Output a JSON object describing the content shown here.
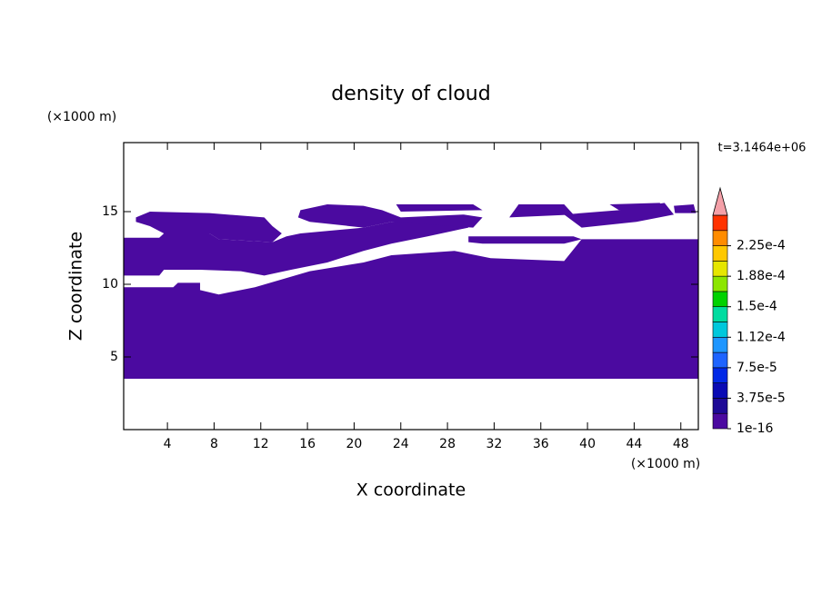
{
  "chart_data": {
    "type": "contour",
    "title": "density of cloud",
    "xlabel": "X coordinate",
    "ylabel": "Z coordinate",
    "x_unit": "(×1000 m)",
    "y_unit": "(×1000 m)",
    "time_label": "t=3.1464e+06",
    "xlim": [
      0.25,
      49.5
    ],
    "ylim": [
      0,
      19.75
    ],
    "xticks": [
      4,
      8,
      12,
      16,
      20,
      24,
      28,
      32,
      36,
      40,
      44,
      48
    ],
    "yticks": [
      5,
      10,
      15
    ],
    "regions": [
      {
        "color": "#4b0aa0",
        "x": [
          0.25,
          4.5,
          4.9,
          6.8,
          6.8,
          8.4,
          11.5,
          16.2,
          20.8,
          23.2,
          28.6,
          31.7,
          38.0,
          39.5,
          49.5,
          49.5,
          0.25
        ],
        "y": [
          9.8,
          9.8,
          10.1,
          10.1,
          9.6,
          9.3,
          9.8,
          10.9,
          11.5,
          12.0,
          12.3,
          11.8,
          11.6,
          13.1,
          13.1,
          3.5,
          3.5
        ]
      },
      {
        "color": "#4b0aa0",
        "x": [
          0.25,
          3.3,
          3.7,
          7.6,
          8.4,
          13.0,
          14.2,
          15.4,
          20.8,
          23.2,
          29.4,
          29.8,
          26.3,
          23.2,
          20.8,
          17.7,
          14.6,
          12.3,
          10.3,
          6.8,
          3.7,
          3.3,
          0.25
        ],
        "y": [
          13.2,
          13.2,
          13.5,
          13.5,
          13.1,
          12.9,
          13.3,
          13.5,
          13.9,
          14.3,
          14.3,
          13.9,
          13.3,
          12.8,
          12.3,
          11.5,
          11.0,
          10.6,
          10.9,
          11.0,
          11.0,
          10.6,
          10.6
        ]
      },
      {
        "color": "#4b0aa0",
        "x": [
          29.8,
          38.8,
          39.5,
          38.0,
          31.0,
          29.8
        ],
        "y": [
          13.3,
          13.3,
          13.1,
          12.8,
          12.8,
          12.9
        ]
      },
      {
        "color": "#4b0aa0",
        "x": [
          1.3,
          2.5,
          7.6,
          12.3,
          13.0,
          13.8,
          13.0,
          8.4,
          7.6,
          3.7,
          2.5,
          1.3
        ],
        "y": [
          14.6,
          15.0,
          14.9,
          14.6,
          14.0,
          13.5,
          12.9,
          13.1,
          13.5,
          13.5,
          14.0,
          14.3
        ]
      },
      {
        "color": "#4b0aa0",
        "x": [
          15.4,
          17.7,
          20.8,
          22.4,
          24.0,
          29.4,
          31.0,
          30.2,
          23.2,
          20.8,
          16.2,
          15.2
        ],
        "y": [
          15.1,
          15.5,
          15.4,
          15.1,
          14.6,
          14.8,
          14.6,
          13.9,
          14.3,
          13.9,
          14.3,
          14.6
        ]
      },
      {
        "color": "#4b0aa0",
        "x": [
          23.6,
          30.2,
          31.0,
          24.0
        ],
        "y": [
          15.5,
          15.5,
          15.1,
          15.0
        ]
      },
      {
        "color": "#4b0aa0",
        "x": [
          34.1,
          38.0,
          38.8,
          33.3
        ],
        "y": [
          15.5,
          15.5,
          14.8,
          14.6
        ]
      },
      {
        "color": "#4b0aa0",
        "x": [
          38.0,
          42.7,
          46.6,
          47.4,
          44.2,
          39.5
        ],
        "y": [
          14.8,
          15.1,
          15.6,
          14.8,
          14.3,
          13.9
        ]
      },
      {
        "color": "#4b0aa0",
        "x": [
          41.9,
          46.2,
          46.6,
          42.7
        ],
        "y": [
          15.5,
          15.6,
          15.1,
          15.1
        ]
      },
      {
        "color": "#4b0aa0",
        "x": [
          47.4,
          49.1,
          49.3,
          47.5
        ],
        "y": [
          15.4,
          15.5,
          14.9,
          14.9
        ]
      }
    ],
    "colorbar": {
      "clim": [
        1e-16,
        0.0002625
      ],
      "colors": [
        "#4b0aa0",
        "#1e0a96",
        "#0a0ab4",
        "#0028e6",
        "#1e64ff",
        "#1e96ff",
        "#00c8dc",
        "#00dca0",
        "#00d200",
        "#8ce600",
        "#e6e600",
        "#ffc800",
        "#ff8c00",
        "#ff3200"
      ],
      "extend_color": "#f4a0a8",
      "ticks": [
        {
          "value": 1e-16,
          "label": "1e-16"
        },
        {
          "value": 3.75e-05,
          "label": "3.75e-5"
        },
        {
          "value": 7.5e-05,
          "label": "7.5e-5"
        },
        {
          "value": 0.0001125,
          "label": "1.12e-4"
        },
        {
          "value": 0.00015,
          "label": "1.5e-4"
        },
        {
          "value": 0.0001875,
          "label": "1.88e-4"
        },
        {
          "value": 0.000225,
          "label": "2.25e-4"
        }
      ]
    }
  }
}
